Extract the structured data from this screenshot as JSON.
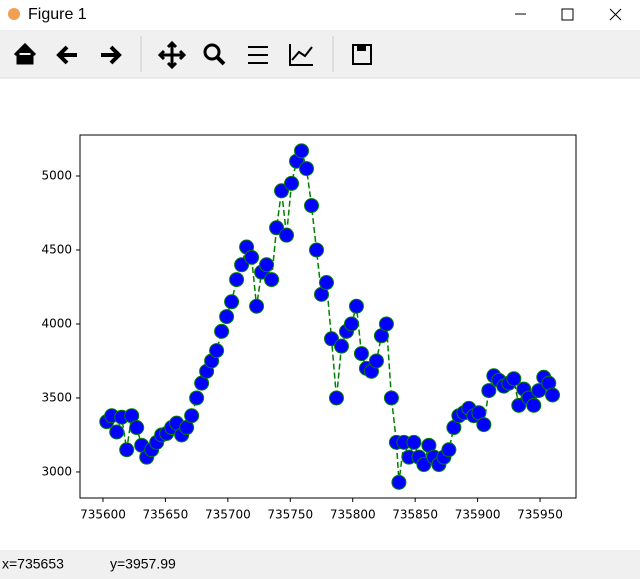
{
  "window": {
    "title": "Figure 1"
  },
  "status": {
    "x": "x=735653",
    "y": "y=3957.99"
  },
  "chart_data": {
    "type": "scatter",
    "xlim": [
      735581.6,
      735978.8
    ],
    "ylim": [
      2824,
      5277
    ],
    "xticks": [
      735600,
      735650,
      735700,
      735750,
      735800,
      735850,
      735900,
      735950
    ],
    "yticks": [
      3000,
      3500,
      4000,
      4500,
      5000
    ],
    "line_style": "dashed",
    "series": [
      {
        "color": "blue",
        "edge_color": "green",
        "line_color": "green",
        "x": [
          735603,
          735607,
          735611,
          735615,
          735619,
          735623,
          735627,
          735631,
          735635,
          735639,
          735643,
          735647,
          735651,
          735655,
          735659,
          735663,
          735667,
          735671,
          735675,
          735679,
          735683,
          735687,
          735691,
          735695,
          735699,
          735703,
          735707,
          735711,
          735715,
          735719,
          735723,
          735727,
          735731,
          735735,
          735739,
          735743,
          735747,
          735751,
          735755,
          735759,
          735763,
          735767,
          735771,
          735775,
          735779,
          735783,
          735787,
          735791,
          735795,
          735799,
          735803,
          735807,
          735811,
          735815,
          735819,
          735823,
          735827,
          735831,
          735835,
          735837,
          735841,
          735845,
          735849,
          735853,
          735857,
          735861,
          735865,
          735869,
          735873,
          735877,
          735881,
          735885,
          735889,
          735893,
          735897,
          735901,
          735905,
          735909,
          735913,
          735917,
          735921,
          735925,
          735929,
          735933,
          735937,
          735941,
          735945,
          735949,
          735953,
          735957,
          735960
        ],
        "values": [
          3340,
          3380,
          3270,
          3370,
          3150,
          3380,
          3300,
          3180,
          3100,
          3150,
          3200,
          3250,
          3260,
          3300,
          3330,
          3250,
          3300,
          3380,
          3500,
          3600,
          3680,
          3750,
          3820,
          3950,
          4050,
          4150,
          4300,
          4400,
          4520,
          4450,
          4120,
          4350,
          4400,
          4300,
          4650,
          4900,
          4600,
          4950,
          5100,
          5170,
          5050,
          4800,
          4500,
          4200,
          4280,
          3900,
          3500,
          3850,
          3950,
          4000,
          4120,
          3800,
          3700,
          3680,
          3750,
          3920,
          4000,
          3500,
          3200,
          2930,
          3200,
          3100,
          3200,
          3100,
          3050,
          3180,
          3100,
          3050,
          3100,
          3150,
          3300,
          3380,
          3400,
          3430,
          3380,
          3400,
          3320,
          3550,
          3650,
          3620,
          3580,
          3600,
          3630,
          3450,
          3560,
          3500,
          3450,
          3550,
          3640,
          3600,
          3520
        ]
      }
    ]
  }
}
